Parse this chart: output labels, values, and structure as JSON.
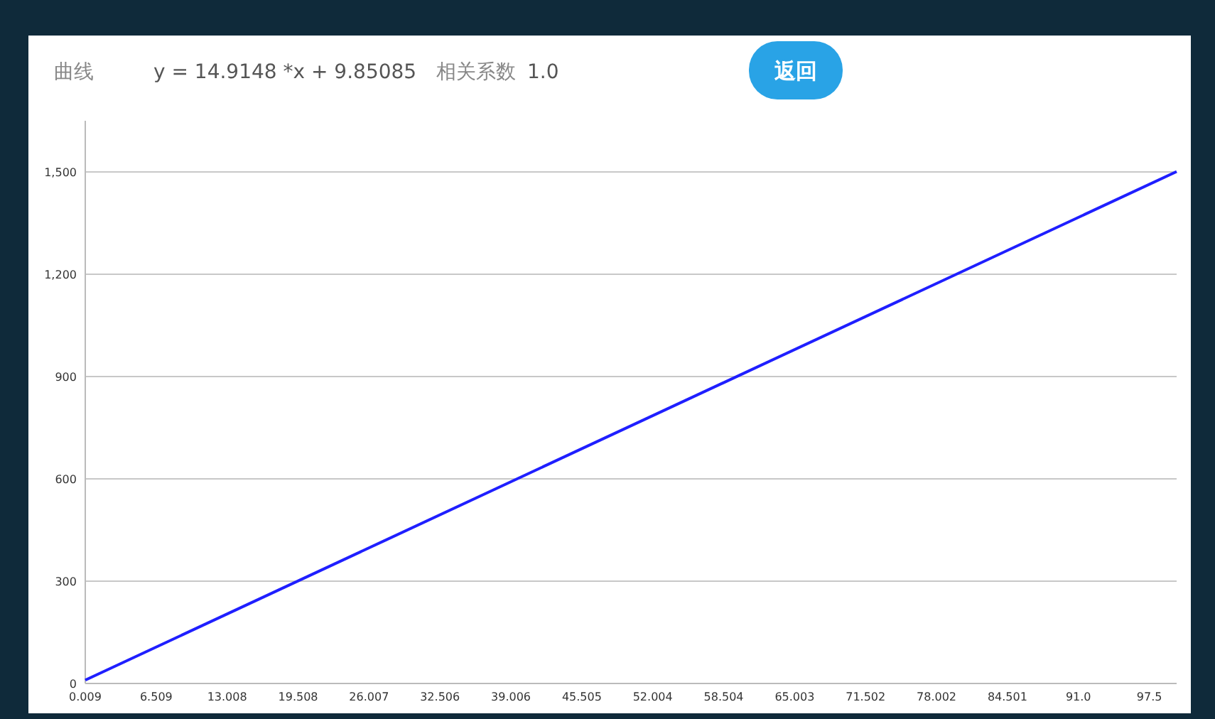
{
  "chart_data": {
    "type": "line",
    "title": "曲线",
    "annotations": [
      "y = 14.9148 *x  + 9.85085",
      "相关系数",
      "1.0",
      "返回"
    ],
    "x": [
      0.009,
      100
    ],
    "series": [
      {
        "color": "#1f1fff",
        "values": [
          10,
          1501
        ]
      }
    ],
    "xlim": [
      0.009,
      100
    ],
    "ylim": [
      0,
      1650
    ],
    "xticks": [
      {
        "value": 0.009,
        "label": "0.009"
      },
      {
        "value": 6.509,
        "label": "6.509"
      },
      {
        "value": 13.008,
        "label": "13.008"
      },
      {
        "value": 19.508,
        "label": "19.508"
      },
      {
        "value": 26.007,
        "label": "26.007"
      },
      {
        "value": 32.506,
        "label": "32.506"
      },
      {
        "value": 39.006,
        "label": "39.006"
      },
      {
        "value": 45.505,
        "label": "45.505"
      },
      {
        "value": 52.004,
        "label": "52.004"
      },
      {
        "value": 58.504,
        "label": "58.504"
      },
      {
        "value": 65.003,
        "label": "65.003"
      },
      {
        "value": 71.502,
        "label": "71.502"
      },
      {
        "value": 78.002,
        "label": "78.002"
      },
      {
        "value": 84.501,
        "label": "84.501"
      },
      {
        "value": 91.0,
        "label": "91.0"
      },
      {
        "value": 97.5,
        "label": "97.5"
      }
    ],
    "yticks": [
      0,
      {
        "value": 300,
        "label": "300"
      },
      {
        "value": 600,
        "label": "600"
      },
      {
        "value": 900,
        "label": "900"
      },
      {
        "value": 1200,
        "label": "1,200"
      },
      {
        "value": 1500,
        "label": "1,500"
      }
    ],
    "grid": "y"
  }
}
